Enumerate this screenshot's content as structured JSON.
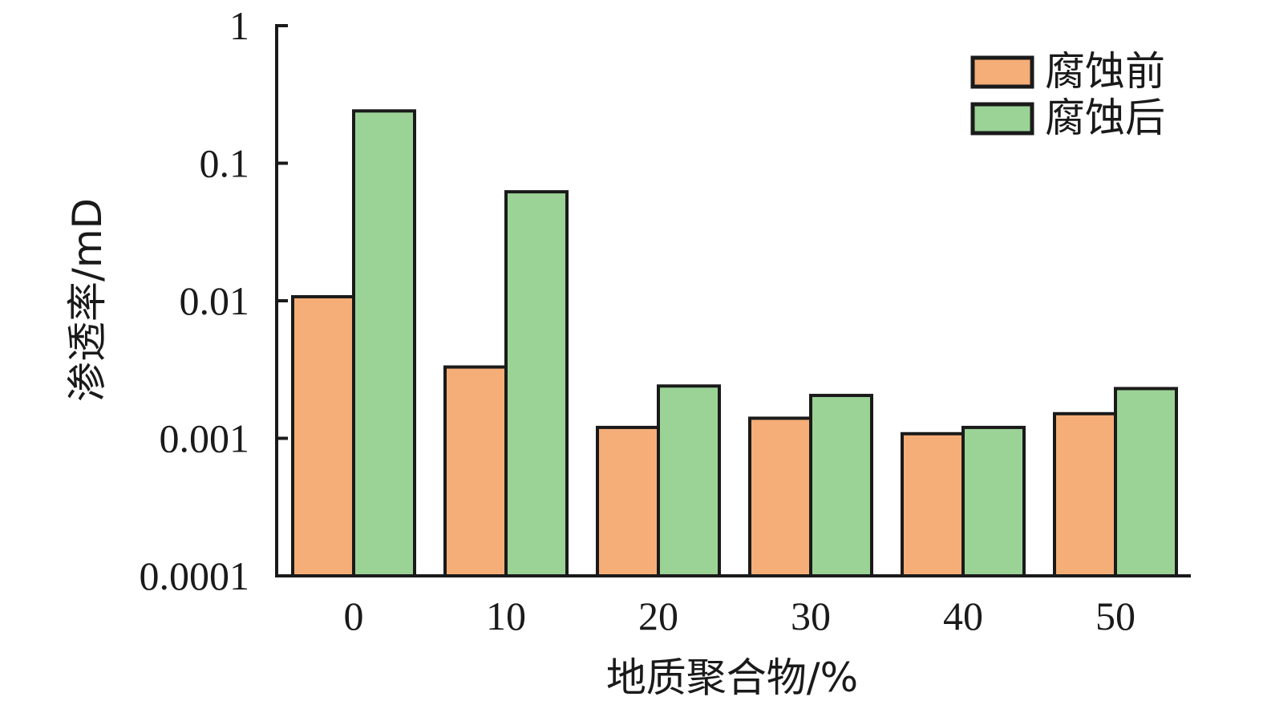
{
  "chart_data": {
    "type": "bar",
    "yscale": "log",
    "ylim": [
      0.0001,
      1
    ],
    "yticks": [
      {
        "value": 1,
        "label": "1"
      },
      {
        "value": 0.1,
        "label": "0.1"
      },
      {
        "value": 0.01,
        "label": "0.01"
      },
      {
        "value": 0.001,
        "label": "0.001"
      },
      {
        "value": 0.0001,
        "label": "0.0001"
      }
    ],
    "categories": [
      "0",
      "10",
      "20",
      "30",
      "40",
      "50"
    ],
    "xlabel": "地质聚合物/%",
    "ylabel": "渗透率/mD",
    "grid": false,
    "legend": "top-right",
    "series": [
      {
        "name": "腐蚀前",
        "color": "#F5AE78",
        "values": [
          0.0107,
          0.0033,
          0.0012,
          0.0014,
          0.00108,
          0.00151
        ]
      },
      {
        "name": "腐蚀后",
        "color": "#9BD396",
        "values": [
          0.24,
          0.062,
          0.0024,
          0.00205,
          0.0012,
          0.0023
        ]
      }
    ]
  }
}
